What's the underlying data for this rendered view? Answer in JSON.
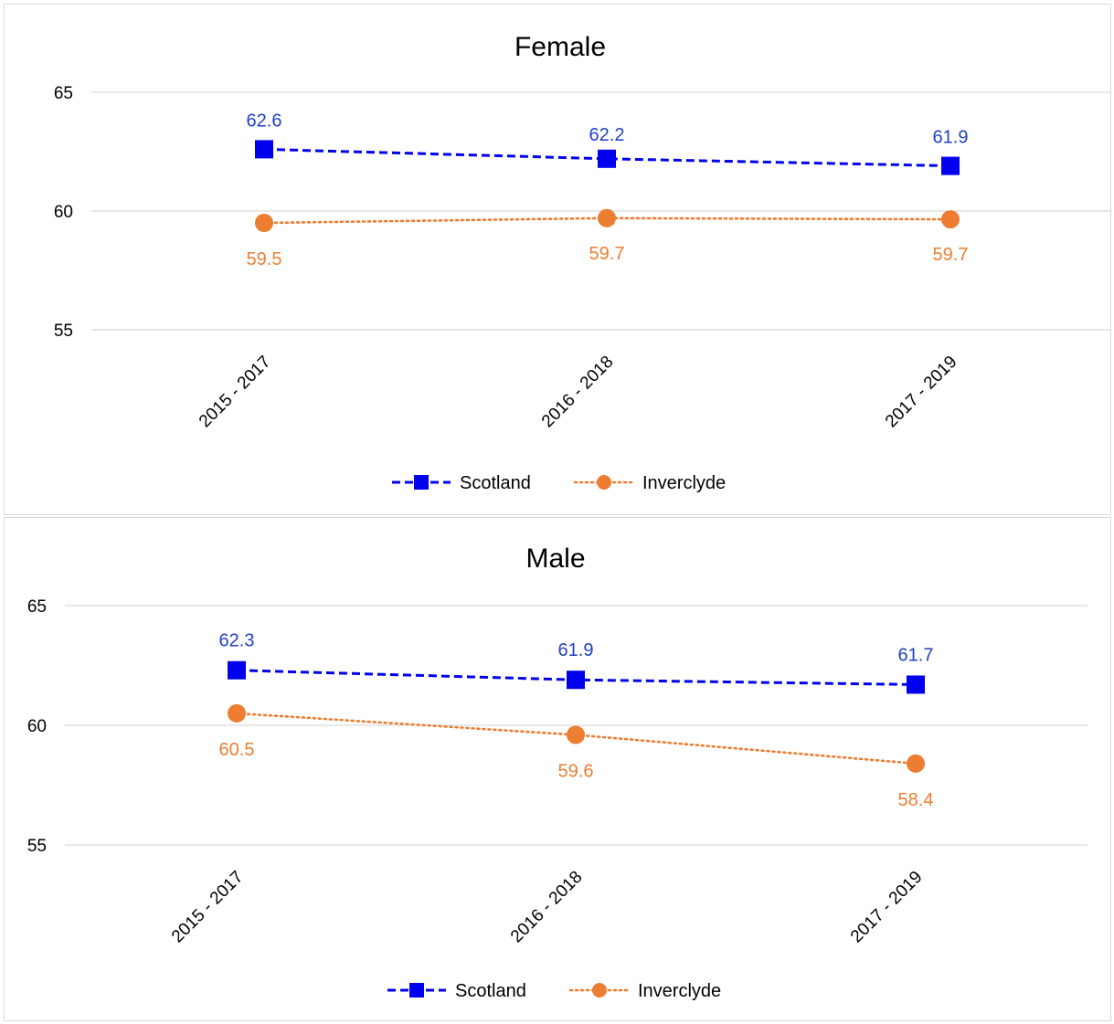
{
  "colors": {
    "scotland": "#0000ee",
    "scotland_label": "#1f3fc4",
    "inverclyde": "#ed7d31",
    "grid": "#d9d9d9"
  },
  "chart_data": [
    {
      "type": "line",
      "title": "Female",
      "categories": [
        "2015 - 2017",
        "2016 - 2018",
        "2017 - 2019"
      ],
      "yticks": [
        55,
        60,
        65
      ],
      "ylim": [
        55,
        65
      ],
      "grid": true,
      "legend_position": "bottom",
      "series": [
        {
          "name": "Scotland",
          "values": [
            62.6,
            62.2,
            61.9
          ],
          "labels": [
            "62.6",
            "62.2",
            "61.9"
          ],
          "marker": "square",
          "line_style": "dashed",
          "label_position": "above"
        },
        {
          "name": "Inverclyde",
          "values": [
            59.5,
            59.7,
            59.65
          ],
          "labels": [
            "59.5",
            "59.7",
            "59.7"
          ],
          "marker": "circle",
          "line_style": "dotted",
          "label_position": "below"
        }
      ]
    },
    {
      "type": "line",
      "title": "Male",
      "categories": [
        "2015 - 2017",
        "2016 - 2018",
        "2017 - 2019"
      ],
      "yticks": [
        55,
        60,
        65
      ],
      "ylim": [
        55,
        65
      ],
      "grid": true,
      "legend_position": "bottom",
      "series": [
        {
          "name": "Scotland",
          "values": [
            62.3,
            61.9,
            61.7
          ],
          "labels": [
            "62.3",
            "61.9",
            "61.7"
          ],
          "marker": "square",
          "line_style": "dashed",
          "label_position": "above"
        },
        {
          "name": "Inverclyde",
          "values": [
            60.5,
            59.6,
            58.4
          ],
          "labels": [
            "60.5",
            "59.6",
            "58.4"
          ],
          "marker": "circle",
          "line_style": "dotted",
          "label_position": "below"
        }
      ]
    }
  ]
}
